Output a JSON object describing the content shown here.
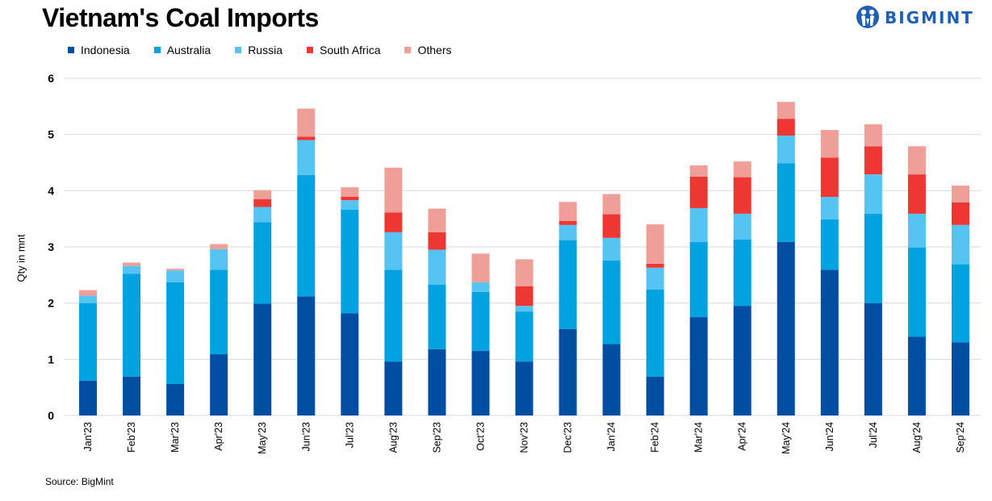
{
  "header": {
    "title": "Vietnam's Coal Imports",
    "logo_text": "BIGMINT",
    "logo_color": "#1f5fb4"
  },
  "footer": {
    "source": "Source: BigMint"
  },
  "chart_data": {
    "type": "bar",
    "stacked": true,
    "title": "Vietnam's Coal Imports",
    "xlabel": "",
    "ylabel": "Qty in mnt",
    "ylim": [
      0,
      6
    ],
    "yticks": [
      0,
      1,
      2,
      3,
      4,
      5,
      6
    ],
    "grid": true,
    "legend_position": "top-left",
    "categories": [
      "Jan'23",
      "Feb'23",
      "Mar'23",
      "Apr'23",
      "May'23",
      "Jun'23",
      "Jul'23",
      "Aug'23",
      "Sep'23",
      "Oct'23",
      "Nov'23",
      "Dec'23",
      "Jan'24",
      "Feb'24",
      "Mar'24",
      "Apr'24",
      "May'24",
      "Jun'24",
      "Jul'24",
      "Aug'24",
      "Sep'24"
    ],
    "series": [
      {
        "name": "Indonesia",
        "color": "#004ea2",
        "values": [
          0.62,
          0.69,
          0.56,
          1.09,
          1.99,
          2.12,
          1.82,
          0.96,
          1.18,
          1.15,
          0.96,
          1.54,
          1.27,
          0.69,
          1.75,
          1.95,
          3.09,
          2.59,
          2.0,
          1.4,
          1.3
        ]
      },
      {
        "name": "Australia",
        "color": "#00a2e0",
        "values": [
          1.38,
          1.83,
          1.81,
          1.5,
          1.45,
          2.16,
          1.84,
          1.63,
          1.15,
          1.05,
          0.89,
          1.58,
          1.49,
          1.55,
          1.34,
          1.18,
          1.4,
          0.9,
          1.59,
          1.59,
          1.39
        ]
      },
      {
        "name": "Russia",
        "color": "#55c4f2",
        "values": [
          0.13,
          0.14,
          0.21,
          0.37,
          0.27,
          0.62,
          0.17,
          0.67,
          0.62,
          0.17,
          0.1,
          0.27,
          0.4,
          0.39,
          0.6,
          0.46,
          0.49,
          0.4,
          0.7,
          0.6,
          0.7
        ]
      },
      {
        "name": "South Africa",
        "color": "#ee3733",
        "values": [
          0.0,
          0.0,
          0.0,
          0.0,
          0.14,
          0.06,
          0.06,
          0.35,
          0.31,
          0.0,
          0.35,
          0.07,
          0.42,
          0.07,
          0.56,
          0.65,
          0.3,
          0.7,
          0.5,
          0.7,
          0.4
        ]
      },
      {
        "name": "Others",
        "color": "#f09e98",
        "values": [
          0.1,
          0.06,
          0.03,
          0.09,
          0.16,
          0.5,
          0.17,
          0.8,
          0.42,
          0.51,
          0.48,
          0.34,
          0.36,
          0.7,
          0.2,
          0.28,
          0.3,
          0.49,
          0.39,
          0.5,
          0.3
        ]
      }
    ]
  }
}
